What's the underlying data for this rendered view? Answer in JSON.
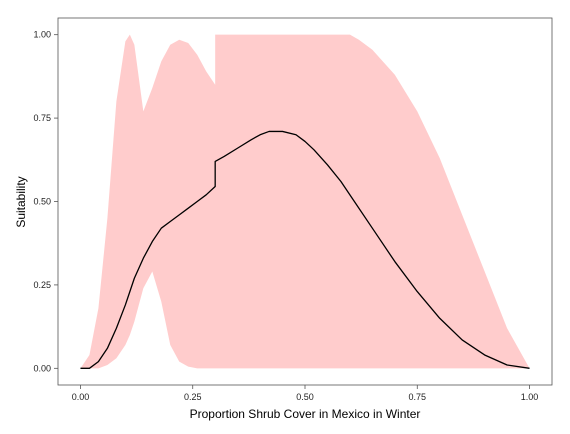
{
  "chart_data": {
    "type": "area",
    "title": "",
    "xlabel": "Proportion Shrub Cover in Mexico in Winter",
    "ylabel": "Suitability",
    "xlim": [
      -0.05,
      1.05
    ],
    "ylim": [
      -0.05,
      1.05
    ],
    "x_ticks": [
      0.0,
      0.25,
      0.5,
      0.75,
      1.0
    ],
    "x_tick_labels": [
      "0.00",
      "0.25",
      "0.50",
      "0.75",
      "1.00"
    ],
    "y_ticks": [
      0.0,
      0.25,
      0.5,
      0.75,
      1.0
    ],
    "y_tick_labels": [
      "0.00",
      "0.25",
      "0.50",
      "0.75",
      "1.00"
    ],
    "grid": false,
    "legend": "none",
    "colors": {
      "band": "#ffcccc",
      "line": "#000000",
      "frame": "#555555"
    },
    "series": [
      {
        "kind": "line",
        "x": [
          0.0,
          0.02,
          0.04,
          0.06,
          0.08,
          0.1,
          0.12,
          0.14,
          0.16,
          0.18,
          0.2,
          0.22,
          0.24,
          0.26,
          0.28,
          0.3,
          0.3,
          0.32,
          0.35,
          0.38,
          0.4,
          0.42,
          0.45,
          0.48,
          0.5,
          0.52,
          0.55,
          0.58,
          0.6,
          0.65,
          0.7,
          0.75,
          0.8,
          0.85,
          0.9,
          0.95,
          1.0
        ],
        "y": [
          0.0,
          0.0,
          0.02,
          0.06,
          0.12,
          0.19,
          0.27,
          0.33,
          0.38,
          0.42,
          0.44,
          0.46,
          0.48,
          0.5,
          0.52,
          0.545,
          0.62,
          0.635,
          0.66,
          0.685,
          0.7,
          0.71,
          0.71,
          0.7,
          0.68,
          0.655,
          0.61,
          0.56,
          0.52,
          0.42,
          0.32,
          0.23,
          0.15,
          0.085,
          0.04,
          0.01,
          0.0
        ]
      },
      {
        "kind": "band",
        "x": [
          0.0,
          0.02,
          0.04,
          0.06,
          0.08,
          0.1,
          0.11,
          0.12,
          0.13,
          0.14,
          0.16,
          0.18,
          0.2,
          0.22,
          0.24,
          0.26,
          0.28,
          0.3,
          0.3,
          0.35,
          0.4,
          0.45,
          0.5,
          0.55,
          0.6,
          0.62,
          0.65,
          0.7,
          0.75,
          0.8,
          0.85,
          0.9,
          0.95,
          1.0
        ],
        "upper": [
          0.0,
          0.04,
          0.18,
          0.45,
          0.8,
          0.98,
          1.0,
          0.97,
          0.87,
          0.77,
          0.84,
          0.92,
          0.97,
          0.985,
          0.975,
          0.94,
          0.89,
          0.85,
          1.0,
          1.0,
          1.0,
          1.0,
          1.0,
          1.0,
          1.0,
          0.985,
          0.955,
          0.88,
          0.77,
          0.63,
          0.46,
          0.29,
          0.12,
          0.0
        ],
        "lower": [
          0.0,
          0.0,
          0.0,
          0.01,
          0.03,
          0.07,
          0.1,
          0.14,
          0.19,
          0.24,
          0.29,
          0.2,
          0.07,
          0.02,
          0.005,
          0.0,
          0.0,
          0.0,
          0.0,
          0.0,
          0.0,
          0.0,
          0.0,
          0.0,
          0.0,
          0.0,
          0.0,
          0.0,
          0.0,
          0.0,
          0.0,
          0.0,
          0.0,
          0.0
        ]
      }
    ]
  }
}
